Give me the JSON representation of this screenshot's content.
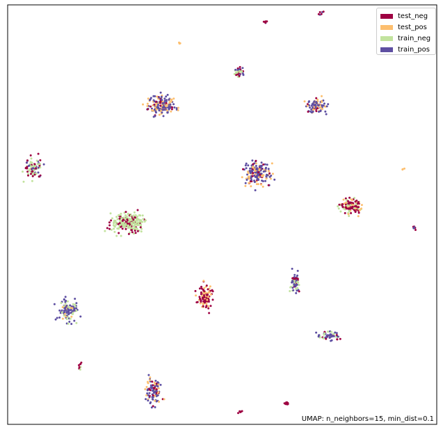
{
  "chart_data": {
    "type": "scatter",
    "title": "",
    "xlabel": "",
    "ylabel": "",
    "axes_ticks": "none",
    "grid": false,
    "legend_placement": "upper-right",
    "annotation": "UMAP: n_neighbors=15, min_dist=0.1",
    "legend": [
      {
        "label": "test_neg",
        "color": "#9e0142"
      },
      {
        "label": "test_pos",
        "color": "#fdbf6f"
      },
      {
        "label": "train_neg",
        "color": "#c2e39e"
      },
      {
        "label": "train_pos",
        "color": "#5e4fa2"
      }
    ],
    "xlim": [
      0,
      1
    ],
    "ylim": [
      0,
      1
    ],
    "clusters": [
      {
        "cx": 0.6,
        "cy": 0.96,
        "rx": 0.006,
        "ry": 0.004,
        "n": 6,
        "mix": {
          "test_neg": 0.7,
          "train_pos": 0.3
        }
      },
      {
        "cx": 0.4,
        "cy": 0.91,
        "rx": 0.004,
        "ry": 0.003,
        "n": 3,
        "mix": {
          "test_pos": 1.0
        }
      },
      {
        "cx": 0.73,
        "cy": 0.98,
        "rx": 0.01,
        "ry": 0.006,
        "n": 6,
        "mix": {
          "test_neg": 0.6,
          "train_pos": 0.4
        }
      },
      {
        "cx": 0.54,
        "cy": 0.84,
        "rx": 0.012,
        "ry": 0.013,
        "n": 40,
        "mix": {
          "test_neg": 0.4,
          "train_neg": 0.4,
          "train_pos": 0.2
        }
      },
      {
        "cx": 0.36,
        "cy": 0.76,
        "rx": 0.032,
        "ry": 0.022,
        "n": 160,
        "mix": {
          "train_pos": 0.6,
          "test_pos": 0.3,
          "test_neg": 0.1
        }
      },
      {
        "cx": 0.72,
        "cy": 0.76,
        "rx": 0.02,
        "ry": 0.016,
        "n": 90,
        "mix": {
          "train_pos": 0.6,
          "test_pos": 0.3,
          "test_neg": 0.1
        }
      },
      {
        "cx": 0.06,
        "cy": 0.61,
        "rx": 0.02,
        "ry": 0.025,
        "n": 80,
        "mix": {
          "train_neg": 0.5,
          "test_neg": 0.3,
          "train_pos": 0.2
        }
      },
      {
        "cx": 0.58,
        "cy": 0.6,
        "rx": 0.03,
        "ry": 0.03,
        "n": 180,
        "mix": {
          "train_pos": 0.6,
          "test_pos": 0.3,
          "test_neg": 0.1
        }
      },
      {
        "cx": 0.92,
        "cy": 0.61,
        "rx": 0.004,
        "ry": 0.004,
        "n": 3,
        "mix": {
          "test_pos": 1.0
        }
      },
      {
        "cx": 0.8,
        "cy": 0.52,
        "rx": 0.025,
        "ry": 0.017,
        "n": 120,
        "mix": {
          "test_neg": 0.5,
          "train_neg": 0.3,
          "test_pos": 0.2
        }
      },
      {
        "cx": 0.28,
        "cy": 0.48,
        "rx": 0.038,
        "ry": 0.022,
        "n": 250,
        "mix": {
          "train_neg": 0.7,
          "test_neg": 0.3
        }
      },
      {
        "cx": 0.95,
        "cy": 0.47,
        "rx": 0.007,
        "ry": 0.005,
        "n": 6,
        "mix": {
          "test_neg": 0.8,
          "train_pos": 0.2
        }
      },
      {
        "cx": 0.67,
        "cy": 0.34,
        "rx": 0.011,
        "ry": 0.022,
        "n": 60,
        "mix": {
          "train_neg": 0.5,
          "train_pos": 0.4,
          "test_neg": 0.1
        }
      },
      {
        "cx": 0.46,
        "cy": 0.3,
        "rx": 0.016,
        "ry": 0.03,
        "n": 100,
        "mix": {
          "test_neg": 0.6,
          "test_pos": 0.4
        }
      },
      {
        "cx": 0.14,
        "cy": 0.27,
        "rx": 0.022,
        "ry": 0.026,
        "n": 110,
        "mix": {
          "train_pos": 0.6,
          "train_neg": 0.3,
          "test_pos": 0.1
        }
      },
      {
        "cx": 0.75,
        "cy": 0.21,
        "rx": 0.024,
        "ry": 0.011,
        "n": 60,
        "mix": {
          "train_pos": 0.4,
          "train_neg": 0.4,
          "test_neg": 0.2
        }
      },
      {
        "cx": 0.17,
        "cy": 0.14,
        "rx": 0.004,
        "ry": 0.01,
        "n": 8,
        "mix": {
          "test_neg": 0.7,
          "train_neg": 0.3
        }
      },
      {
        "cx": 0.34,
        "cy": 0.08,
        "rx": 0.018,
        "ry": 0.03,
        "n": 100,
        "mix": {
          "train_pos": 0.5,
          "test_pos": 0.3,
          "test_neg": 0.2
        }
      },
      {
        "cx": 0.65,
        "cy": 0.05,
        "rx": 0.007,
        "ry": 0.006,
        "n": 8,
        "mix": {
          "test_neg": 1.0
        }
      },
      {
        "cx": 0.54,
        "cy": 0.03,
        "rx": 0.005,
        "ry": 0.004,
        "n": 5,
        "mix": {
          "test_neg": 1.0
        }
      }
    ]
  }
}
